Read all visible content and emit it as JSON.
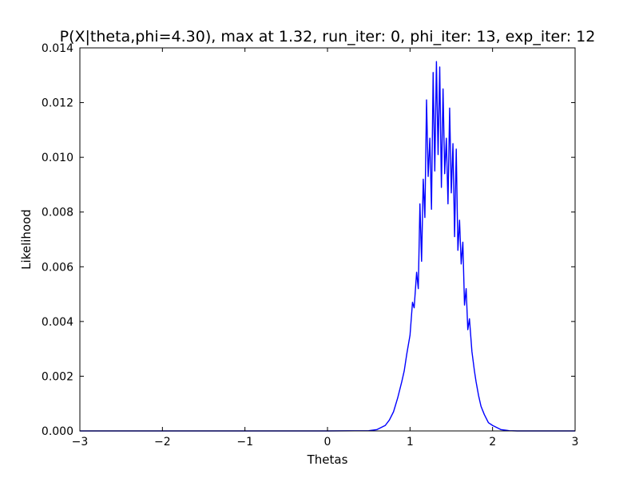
{
  "chart_data": {
    "type": "line",
    "title": "P(X|theta,phi=4.30), max at 1.32, run_iter: 0, phi_iter: 13, exp_iter: 12",
    "xlabel": "Thetas",
    "ylabel": "Likelihood",
    "xlim": [
      -3,
      3
    ],
    "ylim": [
      0,
      0.014
    ],
    "x_ticks": [
      -3,
      -2,
      -1,
      0,
      1,
      2,
      3
    ],
    "x_tick_labels": [
      "−3",
      "−2",
      "−1",
      "0",
      "1",
      "2",
      "3"
    ],
    "y_ticks": [
      0,
      0.002,
      0.004,
      0.006,
      0.008,
      0.01,
      0.012,
      0.014
    ],
    "y_tick_labels": [
      "0.000",
      "0.002",
      "0.004",
      "0.006",
      "0.008",
      "0.010",
      "0.012",
      "0.014"
    ],
    "grid": false,
    "legend": false,
    "series": [
      {
        "color": "#0000ff",
        "x": [
          -3.0,
          -2.0,
          -1.0,
          0.0,
          0.5,
          0.6,
          0.7,
          0.75,
          0.8,
          0.85,
          0.9,
          0.93,
          0.96,
          1.0,
          1.03,
          1.05,
          1.08,
          1.1,
          1.12,
          1.14,
          1.16,
          1.18,
          1.2,
          1.22,
          1.24,
          1.26,
          1.28,
          1.3,
          1.32,
          1.34,
          1.36,
          1.38,
          1.4,
          1.42,
          1.44,
          1.46,
          1.48,
          1.5,
          1.52,
          1.54,
          1.56,
          1.58,
          1.6,
          1.62,
          1.64,
          1.66,
          1.68,
          1.7,
          1.72,
          1.75,
          1.78,
          1.8,
          1.83,
          1.86,
          1.9,
          1.95,
          2.0,
          2.1,
          2.2,
          2.3,
          2.5,
          3.0
        ],
        "y": [
          0.0,
          0.0,
          0.0,
          0.0,
          1e-05,
          5e-05,
          0.0002,
          0.0004,
          0.0007,
          0.0012,
          0.0018,
          0.0022,
          0.0028,
          0.0035,
          0.0047,
          0.0045,
          0.0058,
          0.0052,
          0.0083,
          0.0062,
          0.0092,
          0.0078,
          0.0121,
          0.0093,
          0.0107,
          0.0081,
          0.0131,
          0.0095,
          0.0135,
          0.0101,
          0.0133,
          0.0089,
          0.0125,
          0.0094,
          0.0107,
          0.0083,
          0.0118,
          0.0087,
          0.0105,
          0.0071,
          0.0103,
          0.0066,
          0.0077,
          0.0061,
          0.0069,
          0.0046,
          0.0052,
          0.0037,
          0.0041,
          0.0029,
          0.0022,
          0.0018,
          0.0013,
          0.0009,
          0.0006,
          0.0003,
          0.0002,
          5e-05,
          1e-05,
          0.0,
          0.0,
          0.0
        ]
      }
    ]
  }
}
